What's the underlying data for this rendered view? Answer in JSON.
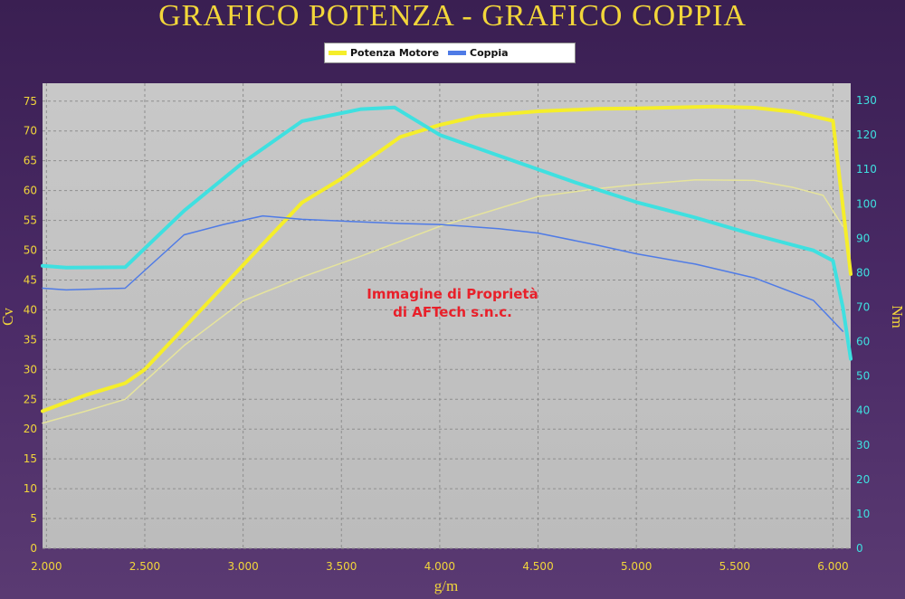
{
  "chart_data": {
    "type": "line",
    "title": "GRAFICO POTENZA - GRAFICO COPPIA",
    "xlabel": "g/m",
    "ylabel_left": "Cv",
    "ylabel_right": "Nm",
    "xlim": [
      1980,
      6090
    ],
    "ylim_left": [
      0,
      78
    ],
    "ylim_right": [
      0,
      135
    ],
    "x_ticks": [
      2000,
      2500,
      3000,
      3500,
      4000,
      4500,
      5000,
      5500,
      6000
    ],
    "x_tick_labels": [
      "2.000",
      "2.500",
      "3.000",
      "3.500",
      "4.000",
      "4.500",
      "5.000",
      "5.500",
      "6.000"
    ],
    "y_left_ticks": [
      0,
      5,
      10,
      15,
      20,
      25,
      30,
      35,
      40,
      45,
      50,
      55,
      60,
      65,
      70,
      75
    ],
    "y_right_ticks": [
      0,
      10,
      20,
      30,
      40,
      50,
      60,
      70,
      80,
      90,
      100,
      110,
      120,
      130
    ],
    "grid": true,
    "legend": [
      "Potenza Motore",
      "Coppia"
    ],
    "legend_position": "top-center",
    "annotation": [
      "Immagine di Proprietà",
      "di AFTech s.n.c."
    ],
    "series": [
      {
        "name": "Potenza Motore",
        "axis": "left",
        "color": "#f5ee2a",
        "width": 4,
        "x": [
          1980,
          2100,
          2200,
          2400,
          2500,
          2700,
          2900,
          3100,
          3300,
          3500,
          3800,
          4000,
          4200,
          4500,
          4800,
          5000,
          5400,
          5600,
          5800,
          6000,
          6090
        ],
        "values": [
          23,
          24.5,
          25.7,
          27.7,
          30,
          37,
          44,
          51,
          58,
          62,
          69,
          71,
          72.5,
          73.3,
          73.7,
          73.8,
          74.1,
          73.9,
          73.2,
          71.7,
          46
        ]
      },
      {
        "axis": "left",
        "color": "#e6e49c",
        "width": 1.5,
        "x": [
          1980,
          2200,
          2400,
          2700,
          3000,
          3300,
          3600,
          4000,
          4300,
          4500,
          4800,
          5000,
          5300,
          5600,
          5800,
          5950,
          6050
        ],
        "values": [
          21,
          23,
          25,
          34,
          41.5,
          45.5,
          49,
          54,
          57,
          59,
          60.3,
          61,
          61.8,
          61.7,
          60.5,
          59.2,
          54
        ]
      },
      {
        "name": "Coppia",
        "axis": "right",
        "color": "#3fe0e0",
        "width": 4,
        "x": [
          1980,
          2100,
          2400,
          2700,
          3000,
          3300,
          3600,
          3770,
          4000,
          4300,
          4700,
          5000,
          5300,
          5600,
          5900,
          6000,
          6050,
          6090
        ],
        "values": [
          82,
          81.5,
          81.6,
          98,
          112,
          124,
          127.5,
          128,
          120,
          114,
          106,
          100.5,
          96,
          91,
          86.5,
          83.5,
          70,
          55
        ]
      },
      {
        "axis": "right",
        "color": "#4f7be6",
        "width": 1.5,
        "x": [
          1980,
          2100,
          2400,
          2700,
          2900,
          3100,
          3300,
          3500,
          3800,
          4000,
          4300,
          4500,
          4800,
          5000,
          5300,
          5600,
          5900,
          6050
        ],
        "values": [
          75.5,
          75,
          75.5,
          91,
          94,
          96.5,
          95.5,
          95,
          94.3,
          94,
          92.8,
          91.5,
          88,
          85.5,
          82.5,
          78.5,
          72,
          63
        ]
      }
    ]
  }
}
